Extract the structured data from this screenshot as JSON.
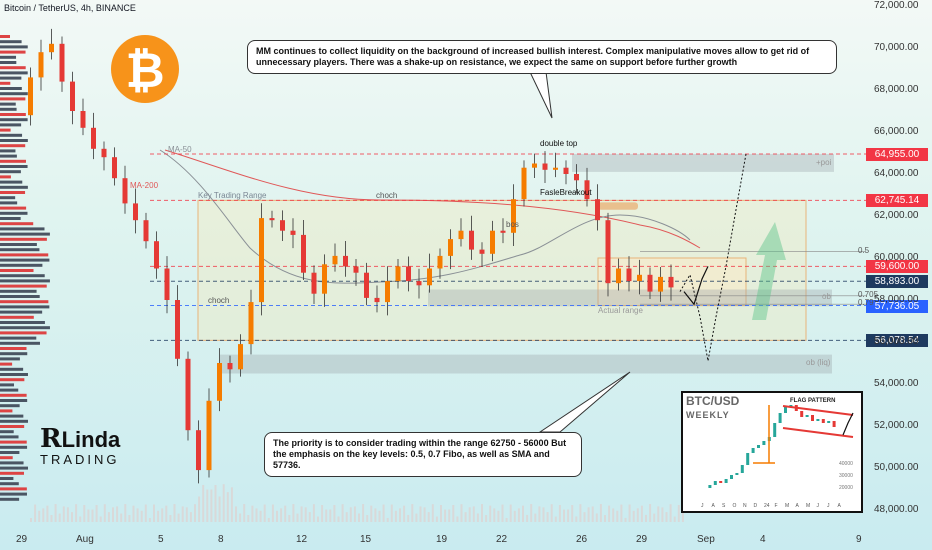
{
  "header": {
    "title": "Bitcoin / TetherUS, 4h, BINANCE"
  },
  "chart_data": {
    "type": "candlestick",
    "y_ticks": [
      "72,000.00",
      "70,000.00",
      "68,000.00",
      "66,000.00",
      "64,000.00",
      "62,000.00",
      "60,000.00",
      "58,000.00",
      "56,000.00",
      "54,000.00",
      "52,000.00",
      "50,000.00",
      "48,000.00"
    ],
    "x_ticks": [
      "29",
      "Aug",
      "5",
      "8",
      "12",
      "15",
      "19",
      "22",
      "26",
      "29",
      "Sep",
      "4",
      "9"
    ],
    "price_levels": [
      {
        "value": 64955,
        "label": "64,955.00",
        "color": "#f23645"
      },
      {
        "value": 62745.14,
        "label": "62,745.14",
        "color": "#f23645"
      },
      {
        "value": 59600,
        "label": "59,600.00",
        "color": "#f23645"
      },
      {
        "value": 58893,
        "label": "58,893.00",
        "color": "#1e3a5f"
      },
      {
        "value": 57736.05,
        "label": "57,736.05",
        "color": "#2962ff"
      },
      {
        "value": 56078.54,
        "label": "56,078.54",
        "color": "#1e3a5f"
      }
    ],
    "price_path": [
      66800,
      68600,
      69800,
      70200,
      68400,
      67000,
      66200,
      65200,
      64800,
      63800,
      62600,
      61800,
      60800,
      59500,
      58000,
      55200,
      51800,
      49900,
      53200,
      55000,
      54700,
      55900,
      57900,
      61900,
      61800,
      61300,
      61100,
      59300,
      58300,
      59700,
      60100,
      59600,
      59300,
      58100,
      57900,
      58900,
      59600,
      58900,
      58700,
      59500,
      60100,
      60900,
      61300,
      60400,
      60200,
      61300,
      61200,
      62800,
      64300,
      64500,
      64200,
      64300,
      64000,
      63700,
      62800,
      61800,
      58800,
      59500,
      58900,
      59200,
      58400,
      59100,
      58600
    ],
    "projection": [
      58400,
      59200,
      57200,
      55100,
      57200,
      59600,
      62300,
      64950
    ],
    "annotations": {
      "ma50": "MA-50",
      "ma200": "MA-200",
      "key_range": "Key Trading Range",
      "choch_top": "choch",
      "choch_left": "choch",
      "bos": "bos",
      "double_top": "double top",
      "false_breakout": "FasleBreakout",
      "poi": "+poi",
      "fib_05": "0.5",
      "fib_0705": "0.705",
      "fib_079": "0.79",
      "ob": "ob",
      "ob_liq": "ob (liq)",
      "actual_range": "Actual range"
    }
  },
  "callouts": {
    "top": "MM continues to collect liquidity on the background of increased bullish interest. Complex manipulative moves allow to get rid of unnecessary players. There was a shake-up on resistance, we expect the same on support before further growth",
    "bottom": "The priority is to consider trading within the range 62750 - 56000 But the emphasis on the key levels: 0.5, 0.7 Fibo, as well as SMA and 57736."
  },
  "logo": {
    "glyph": "₿",
    "color": "#f7931a"
  },
  "brand": {
    "mark": "R",
    "name": "Linda",
    "sub": "TRADING"
  },
  "inset": {
    "title": "BTC/USD",
    "subtitle": "WEEKLY",
    "pattern": "FLAG PATTERN",
    "prices": [
      "40000",
      "30000",
      "20000"
    ],
    "months": [
      "J",
      "A",
      "S",
      "O",
      "N",
      "D",
      "24",
      "F",
      "M",
      "A",
      "M",
      "J",
      "J",
      "A"
    ]
  }
}
